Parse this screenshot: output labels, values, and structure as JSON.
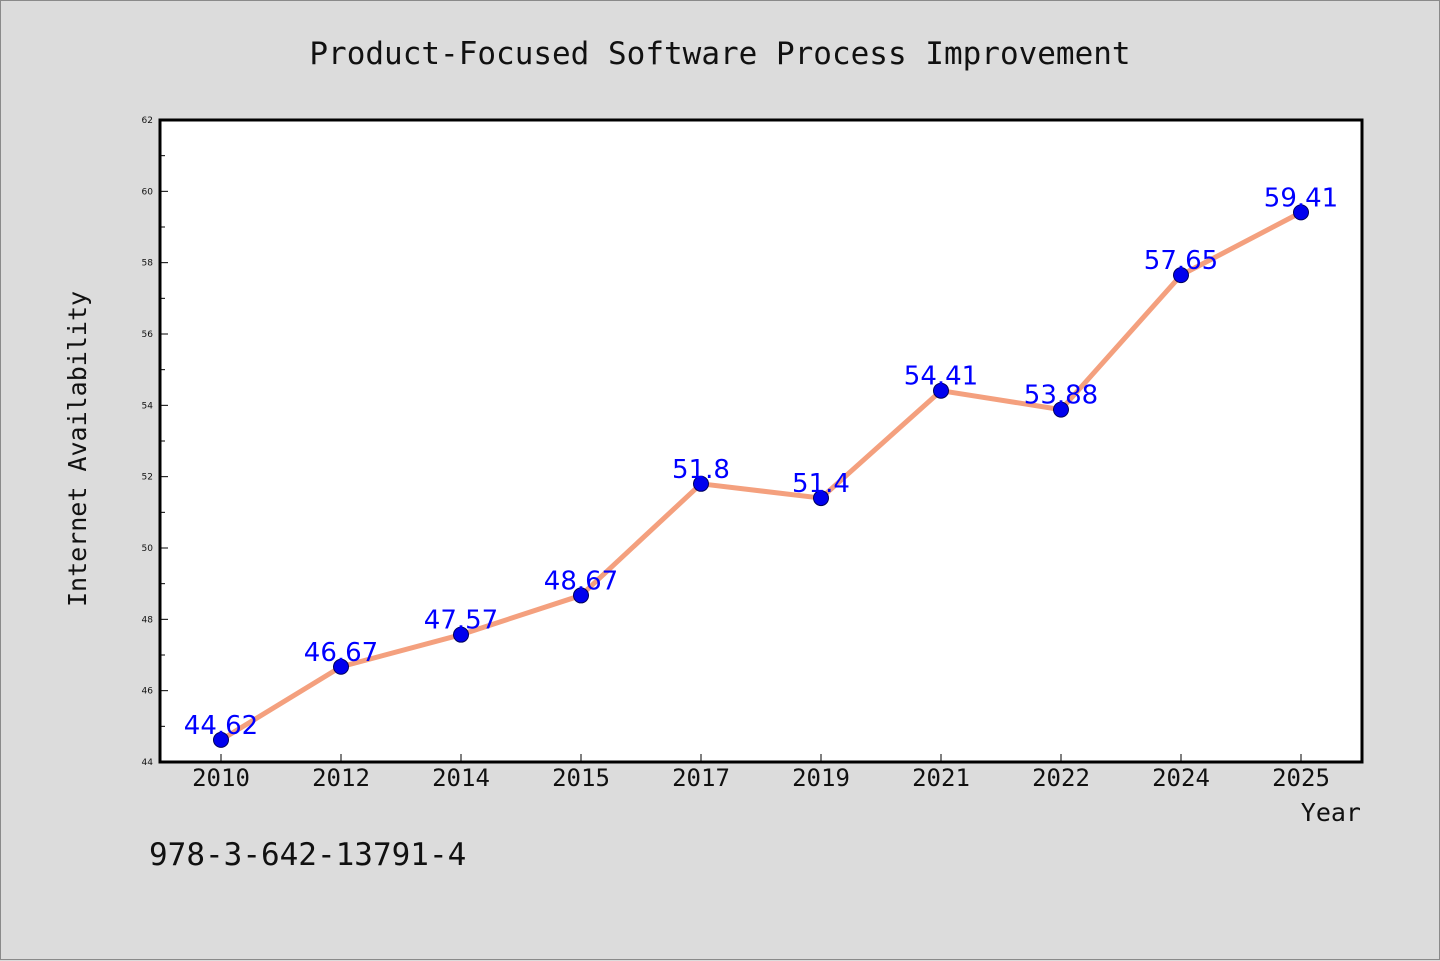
{
  "chart_data": {
    "type": "line",
    "title": "Product-Focused Software Process Improvement",
    "xlabel": "Year",
    "ylabel": "Internet Availability",
    "categories": [
      "2010",
      "2012",
      "2014",
      "2015",
      "2017",
      "2019",
      "2021",
      "2022",
      "2024",
      "2025"
    ],
    "values": [
      44.62,
      46.67,
      47.57,
      48.67,
      51.8,
      51.4,
      54.41,
      53.88,
      57.65,
      59.41
    ],
    "data_labels": [
      "44.62",
      "46.67",
      "47.57",
      "48.67",
      "51.8",
      "51.4",
      "54.41",
      "53.88",
      "57.65",
      "59.41"
    ],
    "ylim": [
      44,
      62
    ],
    "yticks": [
      "44",
      "46",
      "48",
      "50",
      "52",
      "54",
      "56",
      "58",
      "60",
      "62"
    ],
    "grid": false,
    "legend": "none",
    "colors": {
      "line": "#f4a07e",
      "marker_fill": "#0000ee",
      "marker_edge": "#00005a",
      "data_label": "#0000ff",
      "background": "#dcdcdc",
      "plot_background": "#ffffff"
    }
  },
  "footer": {
    "isbn": "978-3-642-13791-4"
  }
}
